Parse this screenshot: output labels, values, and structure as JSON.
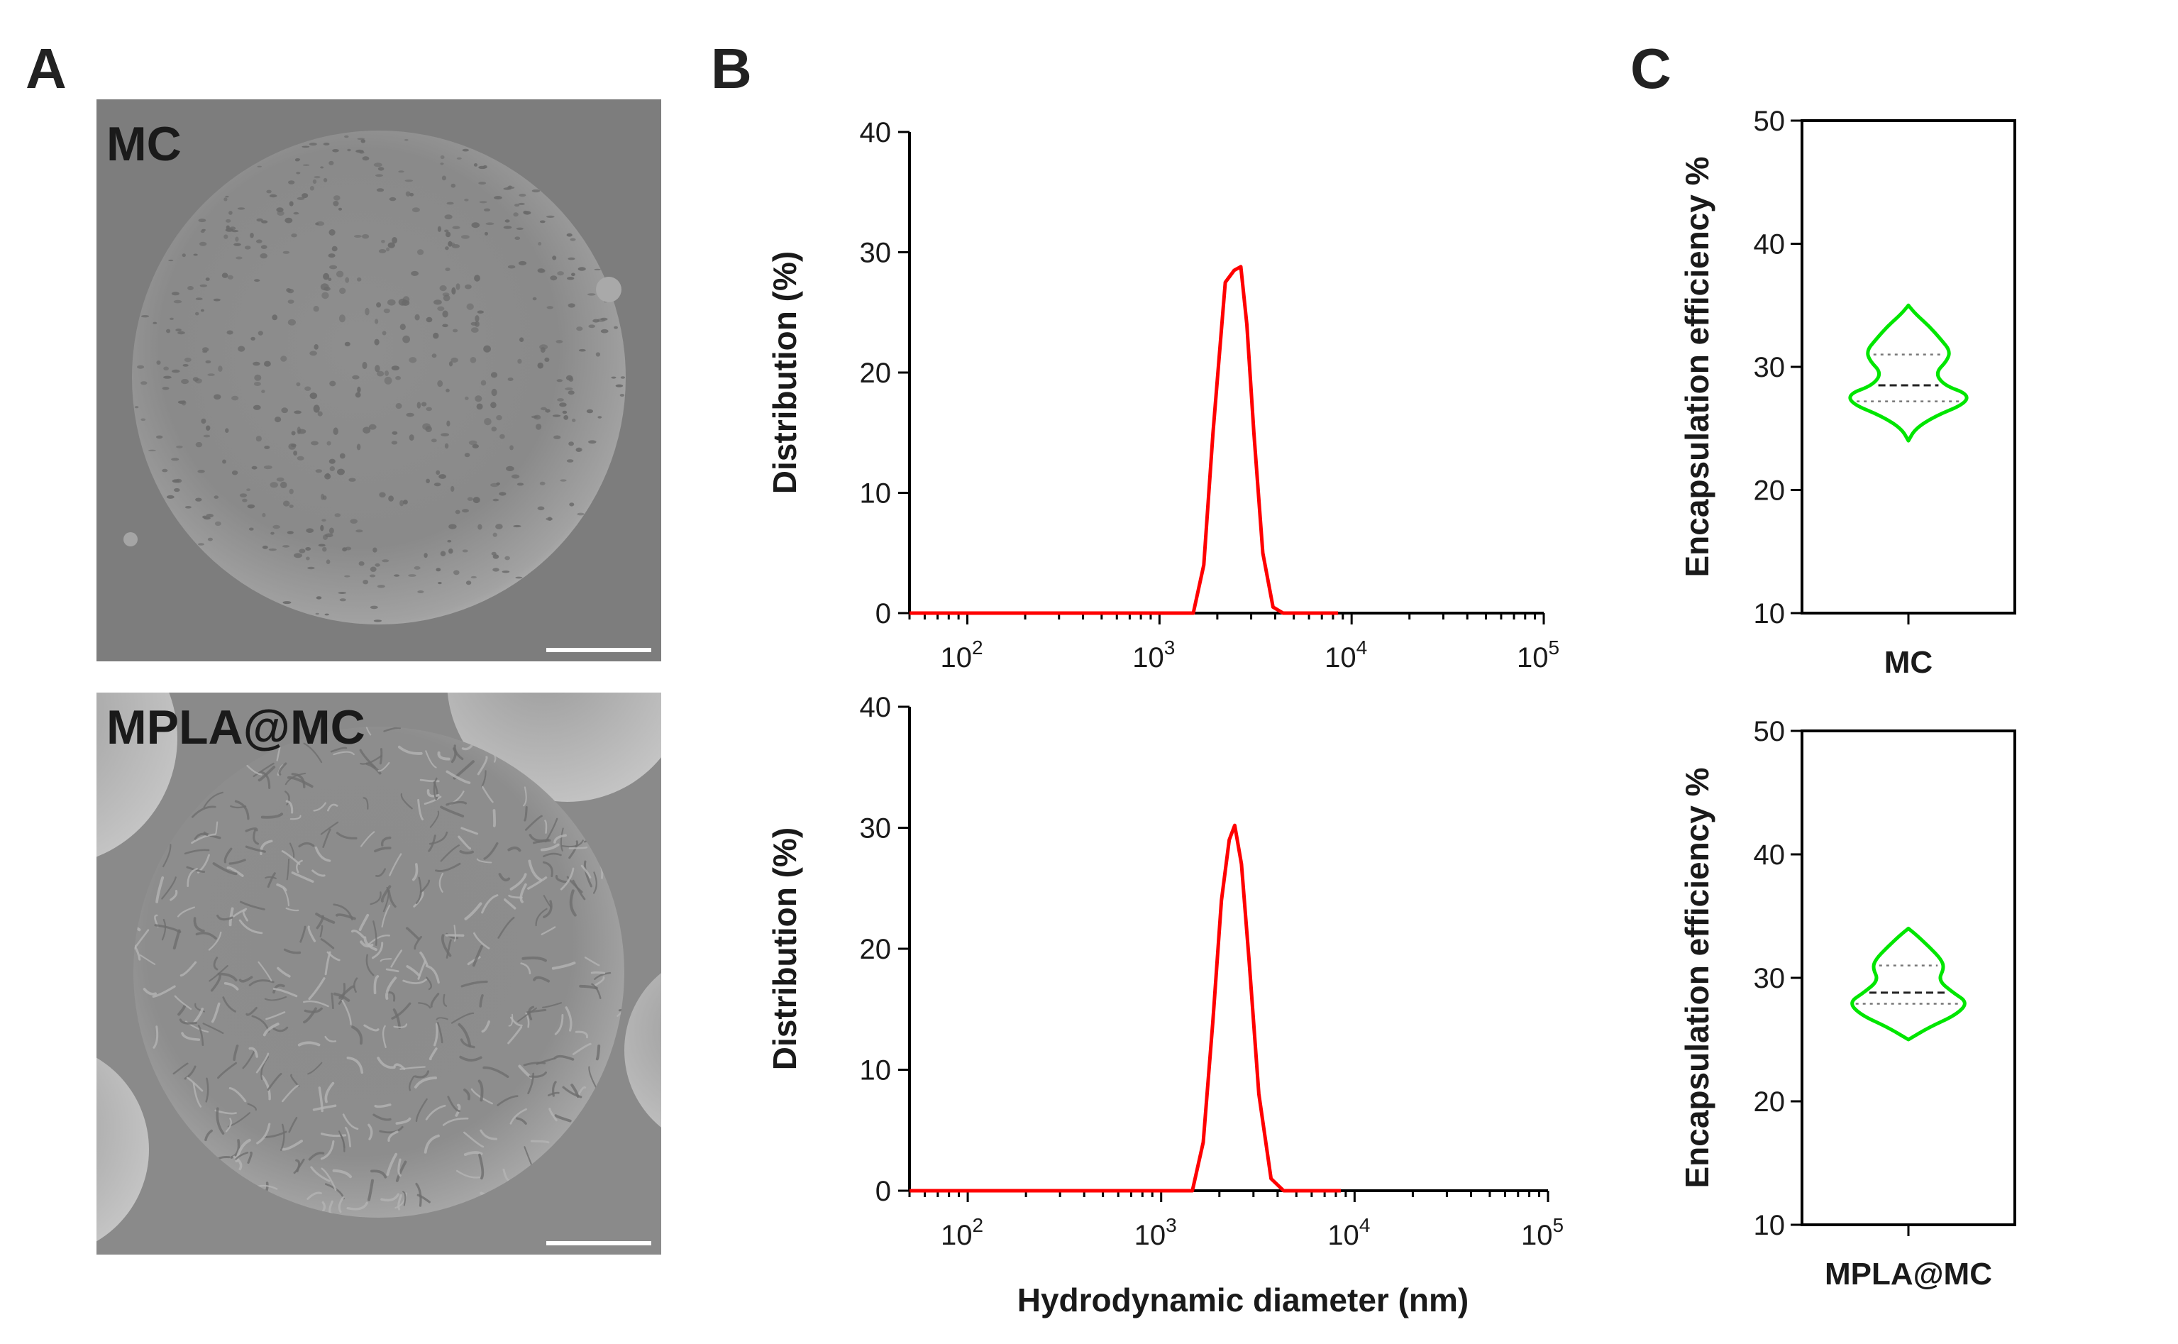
{
  "panels": {
    "A": {
      "letter": "A",
      "images": [
        {
          "label": "MC",
          "texture": "pitted"
        },
        {
          "label": "MPLA@MC",
          "texture": "wrinkled"
        }
      ]
    },
    "B": {
      "letter": "B"
    },
    "C": {
      "letter": "C"
    }
  },
  "colors": {
    "line": "#ff0000",
    "violin": "#00e600"
  },
  "chart_data": [
    {
      "panel": "B",
      "type": "line",
      "ylabel": "Distribution (%)",
      "xlabel": "",
      "xscale": "log",
      "xlim": [
        50,
        100000
      ],
      "ylim": [
        0,
        40
      ],
      "yticks": [
        0,
        10,
        20,
        30,
        40
      ],
      "xtick_labels": [
        {
          "v": 100,
          "exp": "2"
        },
        {
          "v": 1000,
          "exp": "3"
        },
        {
          "v": 10000,
          "exp": "4"
        },
        {
          "v": 100000,
          "exp": "5"
        }
      ],
      "x": [
        50,
        1500,
        1700,
        1900,
        2200,
        2450,
        2650,
        2850,
        3100,
        3450,
        3900,
        4400,
        8500
      ],
      "y": [
        0,
        0,
        4,
        15,
        27.5,
        28.5,
        28.8,
        24,
        15,
        5,
        0.5,
        0,
        0
      ]
    },
    {
      "panel": "B",
      "type": "line",
      "ylabel": "Distribution (%)",
      "xlabel": "Hydrodynamic diameter (nm)",
      "xscale": "log",
      "xlim": [
        50,
        100000
      ],
      "ylim": [
        0,
        40
      ],
      "yticks": [
        0,
        10,
        20,
        30,
        40
      ],
      "xtick_labels": [
        {
          "v": 100,
          "exp": "2"
        },
        {
          "v": 1000,
          "exp": "3"
        },
        {
          "v": 10000,
          "exp": "4"
        },
        {
          "v": 100000,
          "exp": "5"
        }
      ],
      "x": [
        50,
        1450,
        1650,
        1850,
        2050,
        2250,
        2400,
        2600,
        2850,
        3200,
        3700,
        4300,
        8500
      ],
      "y": [
        0,
        0,
        4,
        14,
        24,
        29,
        30.2,
        27,
        19,
        8,
        1,
        0,
        0
      ]
    },
    {
      "panel": "C",
      "type": "violin",
      "category": "MC",
      "ylabel": "Encapsulation efficiency %",
      "ylim": [
        10,
        50
      ],
      "yticks": [
        10,
        20,
        30,
        40,
        50
      ],
      "min": 24,
      "max": 35,
      "median": 28.5,
      "q1": 27.2,
      "q3": 31,
      "density": [
        [
          24,
          0.0
        ],
        [
          25,
          0.12
        ],
        [
          26,
          0.45
        ],
        [
          27,
          0.95
        ],
        [
          27.8,
          1.0
        ],
        [
          28.5,
          0.6
        ],
        [
          29.5,
          0.45
        ],
        [
          30.5,
          0.65
        ],
        [
          31.3,
          0.7
        ],
        [
          32.2,
          0.55
        ],
        [
          33.3,
          0.35
        ],
        [
          34.3,
          0.12
        ],
        [
          35,
          0.0
        ]
      ]
    },
    {
      "panel": "C",
      "type": "violin",
      "category": "MPLA@MC",
      "ylabel": "Encapsulation efficiency %",
      "ylim": [
        10,
        50
      ],
      "yticks": [
        10,
        20,
        30,
        40,
        50
      ],
      "min": 25,
      "max": 34,
      "median": 28.8,
      "q1": 27.9,
      "q3": 31,
      "density": [
        [
          25,
          0.0
        ],
        [
          26,
          0.35
        ],
        [
          27,
          0.8
        ],
        [
          28,
          1.0
        ],
        [
          28.8,
          0.75
        ],
        [
          29.8,
          0.5
        ],
        [
          30.8,
          0.6
        ],
        [
          31.5,
          0.55
        ],
        [
          32.5,
          0.35
        ],
        [
          33.4,
          0.15
        ],
        [
          34,
          0.0
        ]
      ]
    }
  ]
}
